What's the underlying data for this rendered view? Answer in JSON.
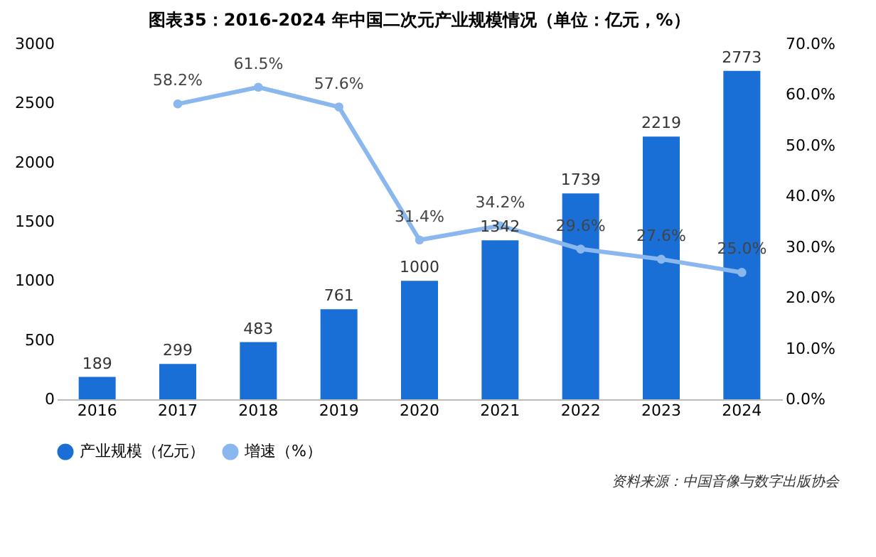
{
  "chart_data": {
    "type": "bar",
    "title": "图表35：2016-2024 年中国二次元产业规模情况（单位：亿元，%）",
    "categories": [
      "2016",
      "2017",
      "2018",
      "2019",
      "2020",
      "2021",
      "2022",
      "2023",
      "2024"
    ],
    "series": [
      {
        "name": "产业规模（亿元）",
        "color": "#1a6fd6",
        "values": [
          189,
          299,
          483,
          761,
          1000,
          1342,
          1739,
          2219,
          2773
        ],
        "data_labels": true
      },
      {
        "name": "增速（%）",
        "type": "line",
        "axis": "y2",
        "color": "#8ab7ee",
        "marker": "circle",
        "values": [
          null,
          58.2,
          61.5,
          57.6,
          31.4,
          34.2,
          29.6,
          27.6,
          25.0
        ],
        "value_labels": [
          null,
          "58.2%",
          "61.5%",
          "57.6%",
          "31.4%",
          "34.2%",
          "29.6%",
          "27.6%",
          "25.0%"
        ]
      }
    ],
    "ylim": [
      0,
      3000
    ],
    "yticks": [
      0,
      500,
      1000,
      1500,
      2000,
      2500,
      3000
    ],
    "y2lim": [
      0,
      70
    ],
    "y2ticks": [
      {
        "value": 0,
        "label": "0.0%"
      },
      {
        "value": 10,
        "label": "10.0%"
      },
      {
        "value": 20,
        "label": "20.0%"
      },
      {
        "value": 30,
        "label": "30.0%"
      },
      {
        "value": 40,
        "label": "40.0%"
      },
      {
        "value": 50,
        "label": "50.0%"
      },
      {
        "value": 60,
        "label": "60.0%"
      },
      {
        "value": 70,
        "label": "70.0%"
      }
    ],
    "grid": false,
    "legend": "bottom",
    "annotations": [
      "资料来源：中国音像与数字出版协会"
    ]
  }
}
